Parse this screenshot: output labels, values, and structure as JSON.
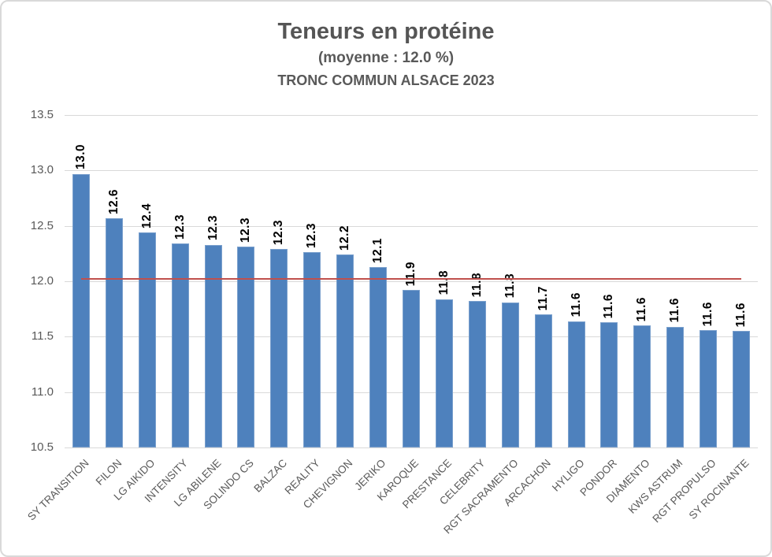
{
  "header": {
    "title": "Teneurs en protéine",
    "subtitle": "(moyenne : 12.0 %)",
    "caption": "TRONC COMMUN ALSACE 2023"
  },
  "colors": {
    "bar": "#4e81bd",
    "average_line": "#c0504d",
    "gridline": "#d9d9d9",
    "title_text": "#555555",
    "axis_text": "#595959",
    "data_label_text": "#000000",
    "border": "#d9d9d9"
  },
  "chart_data": {
    "type": "bar",
    "title": "Teneurs en protéine",
    "subtitle": "(moyenne : 12.0 %)",
    "caption": "TRONC COMMUN ALSACE 2023",
    "categories": [
      "SY TRANSITION",
      "FILON",
      "LG AIKIDO",
      "INTENSITY",
      "LG ABILENE",
      "SOLINDO CS",
      "BALZAC",
      "REALITY",
      "CHEVIGNON",
      "JERIKO",
      "KAROQUE",
      "PRESTANCE",
      "CELEBRITY",
      "RGT SACRAMENTO",
      "ARCACHON",
      "HYLIGO",
      "PONDOR",
      "DIAMENTO",
      "KWS ASTRUM",
      "RGT PROPULSO",
      "SY ROCINANTE"
    ],
    "values": [
      12.97,
      12.57,
      12.44,
      12.34,
      12.33,
      12.31,
      12.29,
      12.26,
      12.24,
      12.13,
      11.92,
      11.84,
      11.82,
      11.81,
      11.7,
      11.64,
      11.63,
      11.6,
      11.59,
      11.56,
      11.55
    ],
    "data_labels": [
      "13.0",
      "12.6",
      "12.4",
      "12.3",
      "12.3",
      "12.3",
      "12.3",
      "12.3",
      "12.2",
      "12.1",
      "11.9",
      "11.8",
      "11.8",
      "11.8",
      "11.7",
      "11.6",
      "11.6",
      "11.6",
      "11.6",
      "11.6",
      "11.6"
    ],
    "average": 12.0,
    "average_line_value": 12.03,
    "ylim": [
      10.5,
      13.5
    ],
    "yticks": [
      13.5,
      13.0,
      12.5,
      12.0,
      11.5,
      11.0,
      10.5
    ],
    "ytick_labels": [
      "13.5",
      "13.0",
      "12.5",
      "12.0",
      "11.5",
      "11.0",
      "10.5"
    ],
    "grid": true,
    "legend": "none",
    "bar_color": "#4e81bd",
    "average_line_color": "#c0504d"
  }
}
